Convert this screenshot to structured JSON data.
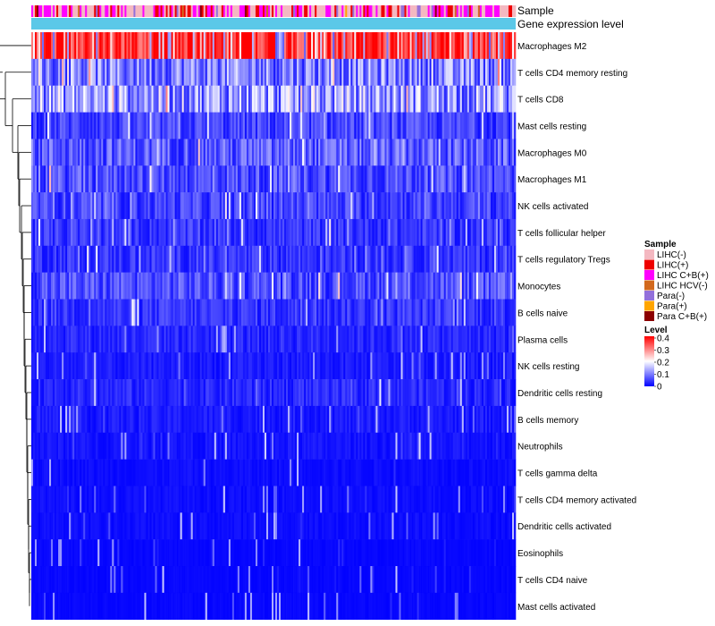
{
  "chart_data": {
    "type": "heatmap",
    "title": "",
    "annotation_tracks": [
      {
        "name": "Sample"
      },
      {
        "name": "Gene expression level"
      }
    ],
    "rows": [
      "Macrophages M2",
      "T cells CD4 memory resting",
      "T cells CD8",
      "Mast cells resting",
      "Macrophages M0",
      "Macrophages M1",
      "NK cells activated",
      "T cells follicular helper",
      "T cells regulatory  Tregs",
      "Monocytes",
      "B cells naive",
      "Plasma cells",
      "NK cells resting",
      "Dendritic cells resting",
      "B cells memory",
      "Neutrophils",
      "T cells gamma delta",
      "T cells CD4 memory activated",
      "Dendritic cells activated",
      "Eosinophils",
      "T cells CD4 naive",
      "Mast cells activated"
    ],
    "approx_row_mean_level": [
      0.32,
      0.1,
      0.12,
      0.05,
      0.07,
      0.06,
      0.05,
      0.04,
      0.04,
      0.06,
      0.04,
      0.03,
      0.02,
      0.03,
      0.02,
      0.015,
      0.01,
      0.01,
      0.01,
      0.005,
      0.005,
      0.005
    ],
    "column_count": 270,
    "legend_sample": {
      "title": "Sample",
      "entries": [
        {
          "label": "LIHC(-)",
          "color": "#f4b8c1"
        },
        {
          "label": "LIHC(+)",
          "color": "#ee0000"
        },
        {
          "label": "LIHC C+B(+)",
          "color": "#ff00ff"
        },
        {
          "label": "LIHC HCV(-)",
          "color": "#d2691e"
        },
        {
          "label": "Para(-)",
          "color": "#9370db"
        },
        {
          "label": "Para(+)",
          "color": "#ffa500"
        },
        {
          "label": "Para C+B(+)",
          "color": "#8b0000"
        }
      ]
    },
    "legend_level": {
      "title": "Level",
      "ticks": [
        "0.4",
        "0.3",
        "0.2",
        "0.1",
        "0"
      ],
      "range": [
        0,
        0.4
      ]
    },
    "colors": {
      "low": "#0000ff",
      "mid": "#ffffff",
      "high": "#ff0000",
      "expression_bar": "#5bc8e8",
      "dendrogram": "#000000"
    },
    "dendrogram": "row clustering tree on left"
  }
}
